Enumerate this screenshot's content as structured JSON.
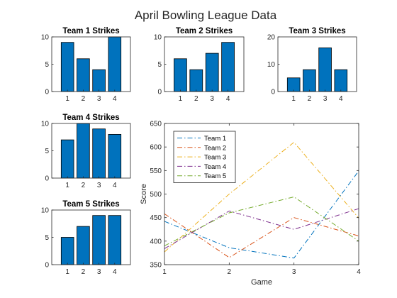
{
  "figure": {
    "title": "April Bowling League Data"
  },
  "colors": {
    "bar_fill": "#0072BD",
    "bar_edge": "#000000",
    "axis": "#262626"
  },
  "chart_data": [
    {
      "type": "bar",
      "title": "Team 1 Strikes",
      "categories": [
        "1",
        "2",
        "3",
        "4"
      ],
      "values": [
        9,
        6,
        4,
        10
      ],
      "ylim": [
        0,
        10
      ],
      "yticks": [
        "0",
        "5",
        "10"
      ]
    },
    {
      "type": "bar",
      "title": "Team 2 Strikes",
      "categories": [
        "1",
        "2",
        "3",
        "4"
      ],
      "values": [
        6,
        4,
        7,
        9
      ],
      "ylim": [
        0,
        10
      ],
      "yticks": [
        "0",
        "5",
        "10"
      ]
    },
    {
      "type": "bar",
      "title": "Team 3 Strikes",
      "categories": [
        "1",
        "2",
        "3",
        "4"
      ],
      "values": [
        5,
        8,
        16,
        8
      ],
      "ylim": [
        0,
        20
      ],
      "yticks": [
        "0",
        "10",
        "20"
      ]
    },
    {
      "type": "bar",
      "title": "Team 4 Strikes",
      "categories": [
        "1",
        "2",
        "3",
        "4"
      ],
      "values": [
        7,
        10,
        9,
        8
      ],
      "ylim": [
        0,
        10
      ],
      "yticks": [
        "0",
        "5",
        "10"
      ]
    },
    {
      "type": "bar",
      "title": "Team 5 Strikes",
      "categories": [
        "1",
        "2",
        "3",
        "4"
      ],
      "values": [
        5,
        7,
        9,
        9
      ],
      "ylim": [
        0,
        10
      ],
      "yticks": [
        "0",
        "5",
        "10"
      ]
    },
    {
      "type": "line",
      "xlabel": "Game",
      "ylabel": "Score",
      "x": [
        1,
        2,
        3,
        4
      ],
      "xticks": [
        "1",
        "2",
        "3",
        "4"
      ],
      "xlim": [
        1,
        4
      ],
      "ylim": [
        350,
        650
      ],
      "yticks": [
        "350",
        "400",
        "450",
        "500",
        "550",
        "600",
        "650"
      ],
      "legend_position": "top-left",
      "series": [
        {
          "name": "Team 1",
          "color": "#0072BD",
          "values": [
            442,
            386,
            364,
            549
          ]
        },
        {
          "name": "Team 2",
          "color": "#D95319",
          "values": [
            458,
            365,
            450,
            411
          ]
        },
        {
          "name": "Team 3",
          "color": "#EDB120",
          "values": [
            377,
            500,
            610,
            449
          ]
        },
        {
          "name": "Team 4",
          "color": "#7E2F8E",
          "values": [
            384,
            464,
            425,
            469
          ]
        },
        {
          "name": "Team 5",
          "color": "#77AC30",
          "values": [
            390,
            460,
            494,
            400
          ]
        }
      ]
    }
  ]
}
